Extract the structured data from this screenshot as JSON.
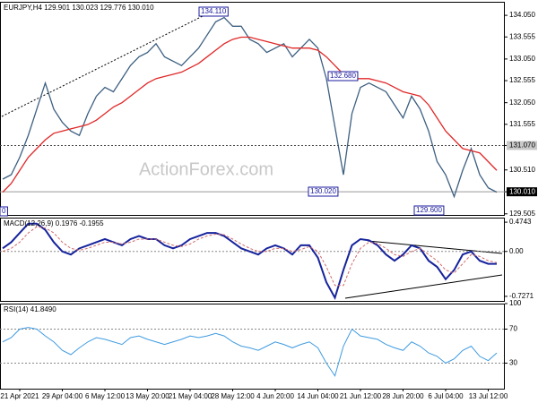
{
  "chart_data": [
    {
      "type": "line",
      "title": "EURJPY,H4  129.901 130.023 129.776 130.010",
      "watermark": "ActionForex.com",
      "ylim": [
        129.48,
        134.36
      ],
      "yticks": [
        {
          "value": 134.05,
          "label": "134.050"
        },
        {
          "value": 133.555,
          "label": "133.555"
        },
        {
          "value": 133.05,
          "label": "133.050"
        },
        {
          "value": 132.555,
          "label": "132.555"
        },
        {
          "value": 132.05,
          "label": "132.050"
        },
        {
          "value": 131.555,
          "label": "131.555"
        },
        {
          "value": 131.07,
          "label": "131.070",
          "box": "#c8c8c8"
        },
        {
          "value": 130.51,
          "label": "130.510"
        },
        {
          "value": 130.01,
          "label": "130.010",
          "box": "#000000"
        },
        {
          "value": 129.505,
          "label": "129.505"
        }
      ],
      "hlines": [
        {
          "value": 131.07,
          "style": "dotted"
        },
        {
          "value": 130.01,
          "style": "solid"
        }
      ],
      "annotations": [
        "134.110",
        "132.680",
        "130.020",
        "129.600",
        "0"
      ],
      "series": [
        {
          "color": "#3d5f80",
          "values": [
            130.3,
            130.4,
            130.8,
            131.3,
            131.9,
            132.5,
            131.9,
            131.6,
            131.4,
            131.3,
            131.8,
            132.2,
            132.4,
            132.3,
            132.6,
            132.9,
            133.1,
            133.2,
            133.4,
            133.1,
            133.0,
            132.9,
            133.1,
            133.3,
            133.6,
            133.9,
            134.0,
            133.8,
            133.8,
            133.5,
            133.4,
            133.2,
            133.3,
            133.4,
            133.1,
            133.3,
            133.5,
            133.3,
            132.6,
            131.5,
            130.4,
            131.8,
            132.4,
            132.5,
            132.4,
            132.3,
            132.0,
            131.7,
            132.2,
            131.9,
            131.4,
            130.7,
            130.4,
            129.9,
            130.5,
            131.0,
            130.4,
            130.1,
            130.0
          ]
        },
        {
          "color": "#e02828",
          "values": [
            130.0,
            130.2,
            130.5,
            130.8,
            131.0,
            131.2,
            131.35,
            131.4,
            131.45,
            131.5,
            131.55,
            131.65,
            131.8,
            131.95,
            132.05,
            132.2,
            132.35,
            132.5,
            132.6,
            132.65,
            132.7,
            132.75,
            132.85,
            132.95,
            133.1,
            133.25,
            133.4,
            133.5,
            133.55,
            133.55,
            133.5,
            133.45,
            133.4,
            133.35,
            133.3,
            133.3,
            133.3,
            133.25,
            133.1,
            132.9,
            132.7,
            132.6,
            132.6,
            132.6,
            132.55,
            132.5,
            132.4,
            132.3,
            132.25,
            132.2,
            132.0,
            131.7,
            131.4,
            131.2,
            131.0,
            130.95,
            130.9,
            130.7,
            130.5
          ]
        }
      ]
    },
    {
      "type": "line",
      "title": "MACD(12,26,9) 0.1976 -0.1955",
      "ylim": [
        -0.801,
        0.548
      ],
      "yticks": [
        0.4743,
        {
          "value": 0,
          "label": "0.00"
        },
        -0.7271
      ],
      "levels": [
        0
      ],
      "series": [
        {
          "color": "#16239c",
          "width": 2,
          "values": [
            0.05,
            0.15,
            0.3,
            0.45,
            0.45,
            0.35,
            0.15,
            0.0,
            -0.05,
            0.05,
            0.1,
            0.15,
            0.2,
            0.15,
            0.1,
            0.2,
            0.25,
            0.2,
            0.2,
            0.1,
            0.05,
            0.1,
            0.2,
            0.25,
            0.3,
            0.3,
            0.25,
            0.15,
            0.05,
            0.0,
            -0.05,
            0.05,
            0.1,
            0.05,
            -0.05,
            0.1,
            0.1,
            -0.1,
            -0.5,
            -0.75,
            -0.3,
            0.1,
            0.2,
            0.18,
            0.1,
            -0.05,
            -0.15,
            -0.05,
            0.1,
            0.05,
            -0.15,
            -0.25,
            -0.45,
            -0.3,
            -0.05,
            0.0,
            -0.15,
            -0.2,
            -0.2
          ]
        },
        {
          "color": "#d06a6a",
          "width": 1,
          "dash": true,
          "values": [
            0.0,
            0.05,
            0.15,
            0.3,
            0.4,
            0.38,
            0.3,
            0.15,
            0.05,
            0.02,
            0.05,
            0.1,
            0.15,
            0.15,
            0.12,
            0.15,
            0.2,
            0.2,
            0.2,
            0.15,
            0.1,
            0.08,
            0.12,
            0.2,
            0.25,
            0.28,
            0.27,
            0.2,
            0.12,
            0.05,
            0.0,
            0.0,
            0.05,
            0.05,
            0.0,
            0.03,
            0.08,
            0.0,
            -0.25,
            -0.55,
            -0.55,
            -0.2,
            0.05,
            0.15,
            0.13,
            0.05,
            -0.05,
            -0.08,
            0.0,
            0.05,
            -0.05,
            -0.15,
            -0.3,
            -0.35,
            -0.2,
            -0.05,
            -0.08,
            -0.15,
            -0.18
          ]
        }
      ]
    },
    {
      "type": "line",
      "title": "RSI(14) 41.8490",
      "ylim": [
        0,
        100
      ],
      "yticks": [
        100,
        70,
        30
      ],
      "levels": [
        70,
        30
      ],
      "categories": [
        null,
        null,
        "21 Apr 2021",
        null,
        null,
        null,
        null,
        "29 Apr 04:00",
        null,
        null,
        null,
        null,
        "6 May 12:00",
        null,
        null,
        null,
        null,
        "13 May 20:00",
        null,
        null,
        null,
        null,
        "21 May 04:00",
        null,
        null,
        null,
        null,
        "28 May 12:00",
        null,
        null,
        null,
        null,
        "4 Jun 20:00",
        null,
        null,
        null,
        null,
        "14 Jun 04:00",
        null,
        null,
        null,
        null,
        "21 Jun 12:00",
        null,
        null,
        null,
        null,
        "28 Jun 20:00",
        null,
        null,
        null,
        null,
        "6 Jul 04:00",
        null,
        null,
        null,
        null,
        "13 Jul 12:00",
        null
      ],
      "series": [
        {
          "color": "#3f9be0",
          "width": 1,
          "values": [
            55,
            60,
            70,
            72,
            70,
            62,
            55,
            45,
            40,
            48,
            55,
            60,
            58,
            55,
            52,
            60,
            62,
            58,
            55,
            52,
            55,
            58,
            62,
            60,
            62,
            65,
            62,
            55,
            50,
            48,
            45,
            50,
            55,
            52,
            48,
            52,
            55,
            48,
            30,
            15,
            50,
            70,
            62,
            60,
            58,
            52,
            48,
            45,
            55,
            50,
            42,
            38,
            30,
            35,
            45,
            50,
            38,
            33,
            42
          ]
        }
      ]
    }
  ]
}
